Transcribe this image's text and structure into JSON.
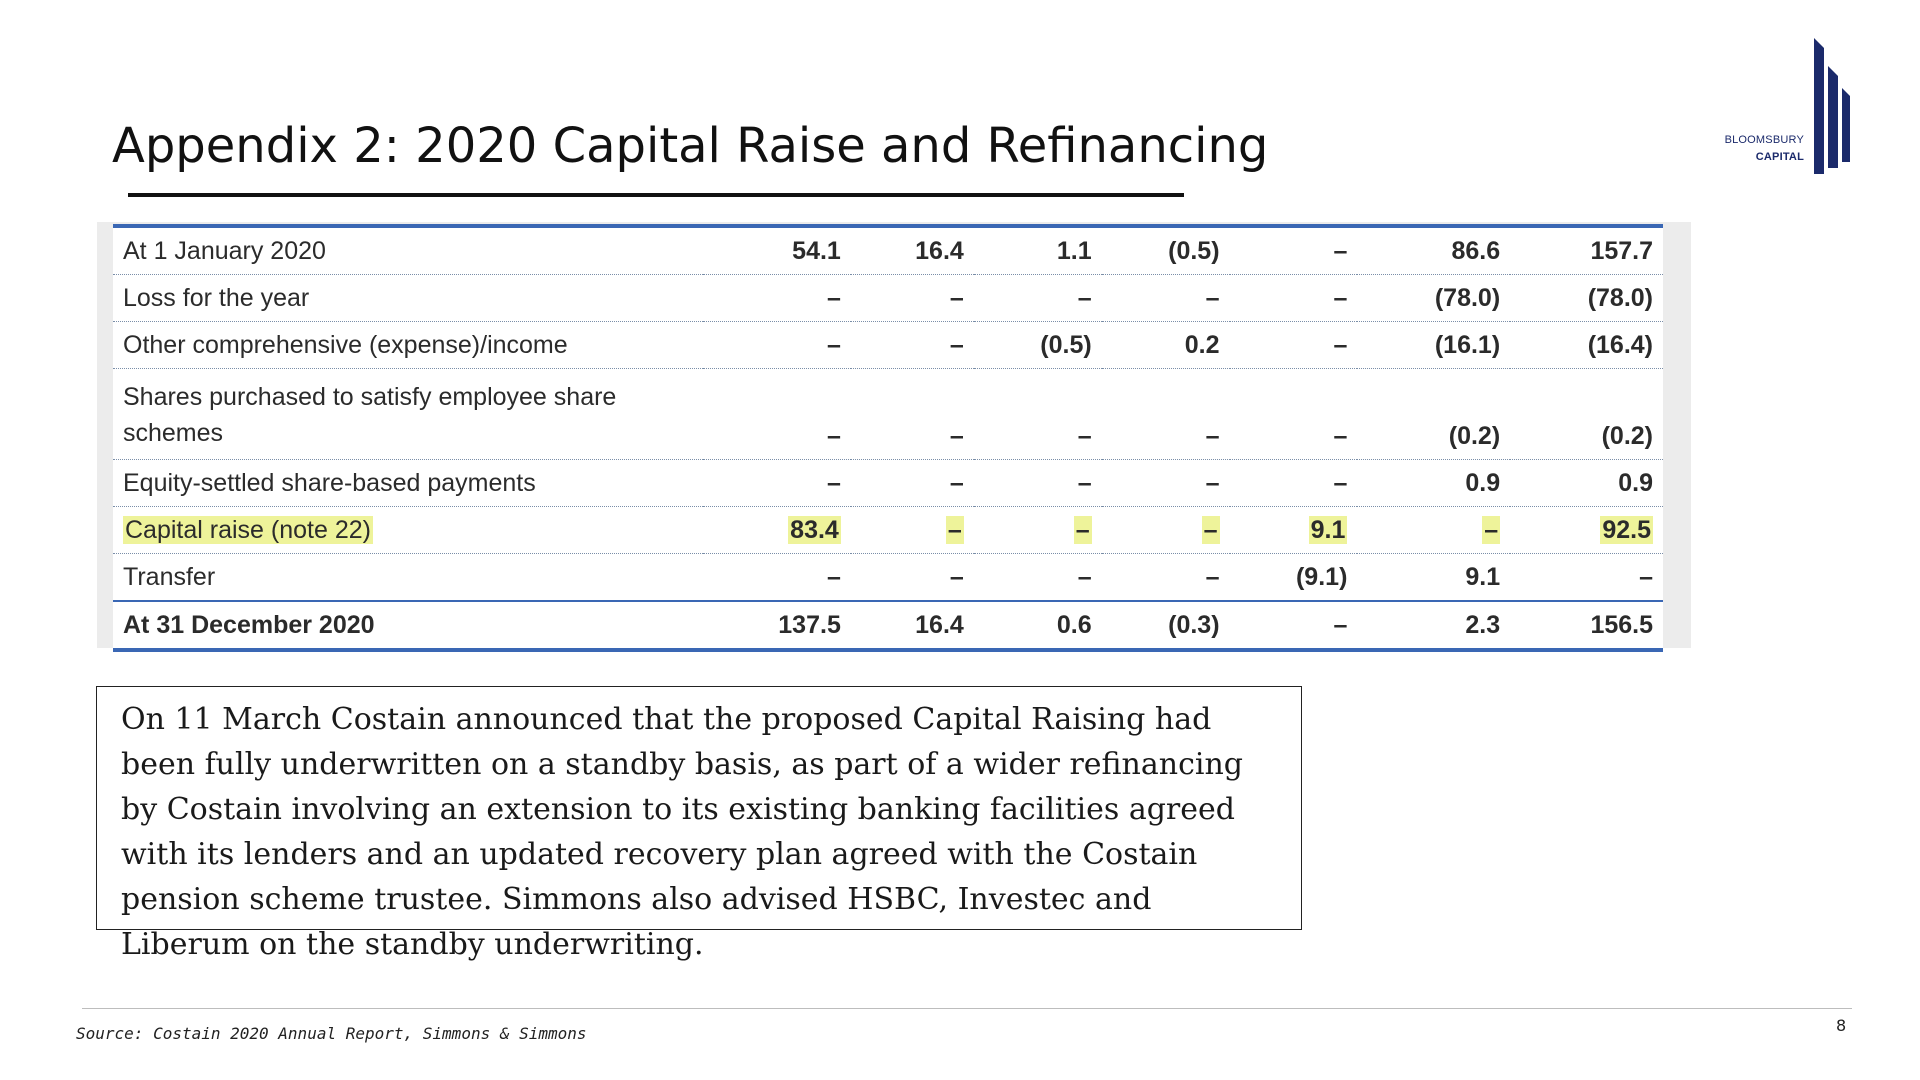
{
  "slide": {
    "title": "Appendix 2: 2020 Capital Raise and Refinancing",
    "logo": {
      "line1": "BLOOMSBURY",
      "line2": "CAPITAL",
      "brand_color": "#1b2a6b"
    },
    "page_number": "8",
    "source": "Source: Costain 2020 Annual Report, Simmons & Simmons"
  },
  "table": {
    "rows": [
      {
        "label": "At 1 January 2020",
        "values": [
          "54.1",
          "16.4",
          "1.1",
          "(0.5)",
          "–",
          "86.6",
          "157.7"
        ]
      },
      {
        "label": "Loss for the year",
        "values": [
          "–",
          "–",
          "–",
          "–",
          "–",
          "(78.0)",
          "(78.0)"
        ]
      },
      {
        "label": "Other comprehensive (expense)/income",
        "values": [
          "–",
          "–",
          "(0.5)",
          "0.2",
          "–",
          "(16.1)",
          "(16.4)"
        ]
      },
      {
        "label": "Shares purchased to satisfy employee share schemes",
        "values": [
          "–",
          "–",
          "–",
          "–",
          "–",
          "(0.2)",
          "(0.2)"
        ]
      },
      {
        "label": "Equity-settled share-based payments",
        "values": [
          "–",
          "–",
          "–",
          "–",
          "–",
          "0.9",
          "0.9"
        ]
      },
      {
        "label": "Capital raise (note 22)",
        "values": [
          "83.4",
          "–",
          "–",
          "–",
          "9.1",
          "–",
          "92.5"
        ]
      },
      {
        "label": "Transfer",
        "values": [
          "–",
          "–",
          "–",
          "–",
          "(9.1)",
          "9.1",
          "–"
        ]
      },
      {
        "label": "At 31 December 2020",
        "values": [
          "137.5",
          "16.4",
          "0.6",
          "(0.3)",
          "–",
          "2.3",
          "156.5"
        ]
      }
    ],
    "highlight_color": "#eef39a",
    "rule_color": "#3a67b4"
  },
  "note": {
    "text": "On 11 March Costain announced that the proposed Capital Raising had been fully underwritten on a standby basis, as part of a wider refinancing by Costain involving an extension to its existing banking facilities agreed with its lenders and an updated recovery plan agreed with the Costain pension scheme trustee. Simmons also advised HSBC, Investec and Liberum on the standby underwriting."
  }
}
